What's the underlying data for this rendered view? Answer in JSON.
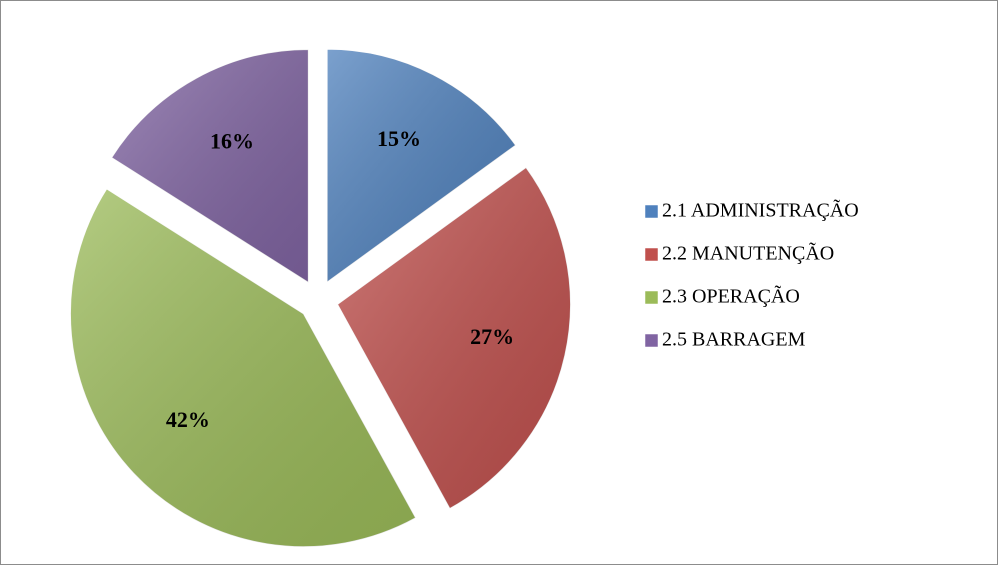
{
  "chart_data": {
    "type": "pie",
    "categories": [
      "2.1 ADMINISTRAÇÃO",
      "2.2 MANUTENÇÃO",
      "2.3 OPERAÇÃO",
      "2.5 BARRAGEM"
    ],
    "values": [
      15,
      27,
      42,
      16
    ],
    "value_labels": [
      "15%",
      "27%",
      "42%",
      "16%"
    ],
    "colors": [
      "#4f81bd",
      "#c0504d",
      "#9bbb59",
      "#8064a2"
    ],
    "legend": "right"
  }
}
